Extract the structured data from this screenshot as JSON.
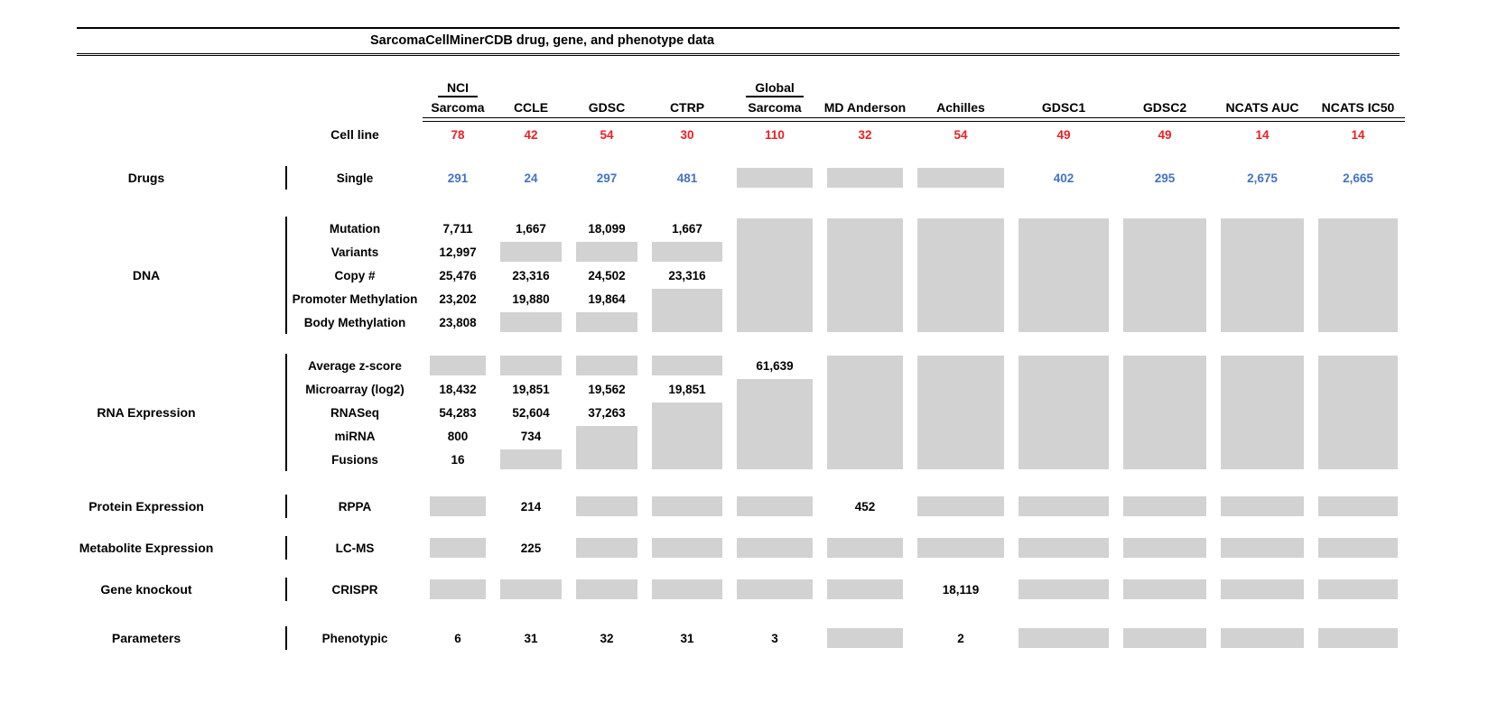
{
  "colors": {
    "cell_line_red": "#ee1d23",
    "drug_blue": "#4472c4",
    "no_data_gray": "#d2d2d2",
    "rule_black": "#000000"
  },
  "chart_data": {
    "type": "table",
    "title": "SarcomaCellMinerCDB drug, gene, and phenotype data",
    "layout_note": "null value = gray box meaning data not available; gray boxes merge vertically within a section",
    "columns": [
      {
        "top": "NCI",
        "name": "Sarcoma"
      },
      {
        "name": "CCLE"
      },
      {
        "name": "GDSC"
      },
      {
        "name": "CTRP"
      },
      {
        "top": "Global",
        "name": "Sarcoma"
      },
      {
        "name": "MD Anderson"
      },
      {
        "name": "Achilles"
      },
      {
        "name": "GDSC1"
      },
      {
        "name": "GDSC2"
      },
      {
        "name": "NCATS AUC"
      },
      {
        "name": "NCATS IC50"
      }
    ],
    "cell_line_label": "Cell line",
    "cell_line_counts": [
      "78",
      "42",
      "54",
      "30",
      "110",
      "32",
      "54",
      "49",
      "49",
      "14",
      "14"
    ],
    "sections": [
      {
        "category": "Drugs",
        "value_color": "blue",
        "rows": [
          {
            "measure": "Single",
            "values": [
              "291",
              "24",
              "297",
              "481",
              null,
              null,
              null,
              "402",
              "295",
              "2,675",
              "2,665"
            ]
          }
        ]
      },
      {
        "category": "DNA",
        "rows": [
          {
            "measure": "Mutation",
            "values": [
              "7,711",
              "1,667",
              "18,099",
              "1,667",
              null,
              null,
              null,
              null,
              null,
              null,
              null
            ]
          },
          {
            "measure": "Variants",
            "values": [
              "12,997",
              null,
              null,
              null,
              null,
              null,
              null,
              null,
              null,
              null,
              null
            ]
          },
          {
            "measure": "Copy #",
            "values": [
              "25,476",
              "23,316",
              "24,502",
              "23,316",
              null,
              null,
              null,
              null,
              null,
              null,
              null
            ]
          },
          {
            "measure": "Promoter Methylation",
            "values": [
              "23,202",
              "19,880",
              "19,864",
              null,
              null,
              null,
              null,
              null,
              null,
              null,
              null
            ]
          },
          {
            "measure": "Body Methylation",
            "values": [
              "23,808",
              null,
              null,
              null,
              null,
              null,
              null,
              null,
              null,
              null,
              null
            ]
          }
        ]
      },
      {
        "category": "RNA Expression",
        "rows": [
          {
            "measure": "Average z-score",
            "values": [
              null,
              null,
              null,
              null,
              "61,639",
              null,
              null,
              null,
              null,
              null,
              null
            ]
          },
          {
            "measure": "Microarray (log2)",
            "values": [
              "18,432",
              "19,851",
              "19,562",
              "19,851",
              null,
              null,
              null,
              null,
              null,
              null,
              null
            ]
          },
          {
            "measure": "RNASeq",
            "values": [
              "54,283",
              "52,604",
              "37,263",
              null,
              null,
              null,
              null,
              null,
              null,
              null,
              null
            ]
          },
          {
            "measure": "miRNA",
            "values": [
              "800",
              "734",
              null,
              null,
              null,
              null,
              null,
              null,
              null,
              null,
              null
            ]
          },
          {
            "measure": "Fusions",
            "values": [
              "16",
              null,
              null,
              null,
              null,
              null,
              null,
              null,
              null,
              null,
              null
            ]
          }
        ]
      },
      {
        "category": "Protein Expression",
        "rows": [
          {
            "measure": "RPPA",
            "values": [
              null,
              "214",
              null,
              null,
              null,
              "452",
              null,
              null,
              null,
              null,
              null
            ]
          }
        ]
      },
      {
        "category": "Metabolite Expression",
        "rows": [
          {
            "measure": "LC-MS",
            "values": [
              null,
              "225",
              null,
              null,
              null,
              null,
              null,
              null,
              null,
              null,
              null
            ]
          }
        ]
      },
      {
        "category": "Gene knockout",
        "rows": [
          {
            "measure": "CRISPR",
            "values": [
              null,
              null,
              null,
              null,
              null,
              null,
              "18,119",
              null,
              null,
              null,
              null
            ]
          }
        ]
      },
      {
        "category": "Parameters",
        "rows": [
          {
            "measure": "Phenotypic",
            "values": [
              "6",
              "31",
              "32",
              "31",
              "3",
              null,
              "2",
              null,
              null,
              null,
              null
            ]
          }
        ]
      }
    ]
  }
}
